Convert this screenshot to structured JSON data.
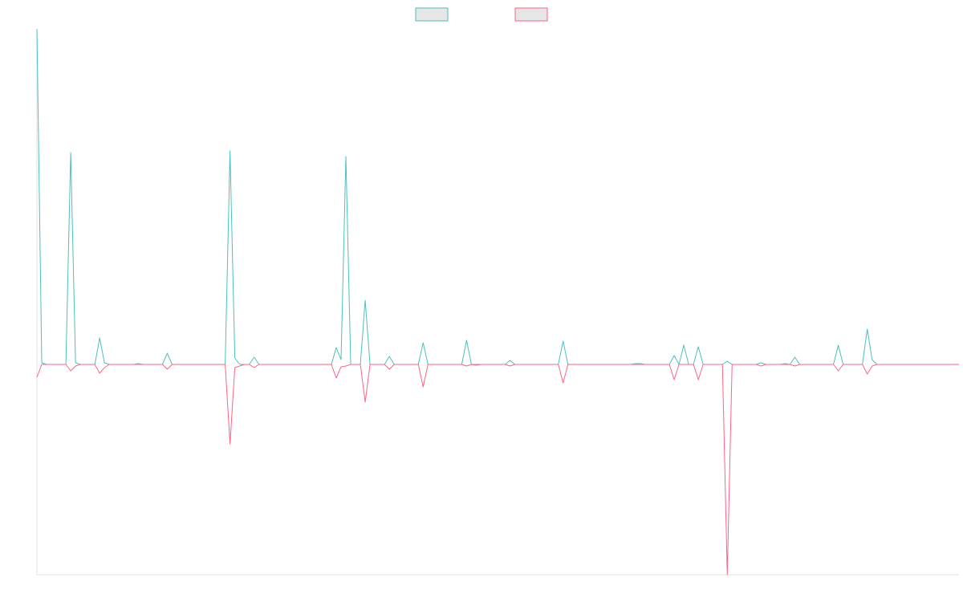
{
  "chart_data": {
    "type": "line",
    "ylim": [
      -262,
      418
    ],
    "legend": "top",
    "series": [
      {
        "color": "#4bc0c0",
        "values": [
          418,
          2,
          0,
          0,
          0,
          0,
          0,
          264,
          2,
          0,
          0,
          0,
          0,
          33,
          2,
          0,
          0,
          0,
          0,
          0,
          0,
          1,
          0,
          0,
          0,
          0,
          0,
          14,
          0,
          0,
          0,
          0,
          0,
          0,
          0,
          0,
          0,
          0,
          0,
          0,
          266,
          8,
          0,
          0,
          0,
          9,
          0,
          0,
          0,
          0,
          0,
          0,
          0,
          0,
          0,
          0,
          0,
          0,
          0,
          0,
          0,
          0,
          21,
          6,
          259,
          0,
          0,
          0,
          80,
          0,
          0,
          0,
          0,
          10,
          0,
          0,
          0,
          0,
          0,
          0,
          27,
          0,
          0,
          0,
          0,
          0,
          0,
          0,
          0,
          30,
          0,
          0,
          0,
          0,
          0,
          0,
          0,
          0,
          5,
          0,
          0,
          0,
          0,
          0,
          0,
          0,
          0,
          0,
          0,
          29,
          0,
          0,
          0,
          0,
          0,
          0,
          0,
          0,
          0,
          0,
          0,
          0,
          0,
          0,
          1,
          1,
          0,
          0,
          0,
          0,
          0,
          0,
          11,
          0,
          24,
          0,
          0,
          22,
          0,
          0,
          0,
          0,
          0,
          4,
          0,
          0,
          0,
          0,
          0,
          0,
          2,
          0,
          0,
          0,
          0,
          1,
          0,
          9,
          0,
          0,
          0,
          0,
          0,
          0,
          0,
          0,
          24,
          0,
          0,
          0,
          0,
          0,
          44,
          6,
          0,
          0,
          0,
          0,
          0,
          0,
          0,
          0,
          0,
          0,
          0,
          0,
          0,
          0,
          0,
          0,
          0,
          0
        ]
      },
      {
        "color": "#ff6384",
        "values": [
          -16,
          0,
          0,
          0,
          0,
          0,
          0,
          -8,
          -2,
          0,
          0,
          0,
          0,
          -11,
          -4,
          0,
          0,
          0,
          0,
          0,
          0,
          0,
          0,
          0,
          0,
          0,
          0,
          -6,
          0,
          0,
          0,
          0,
          0,
          0,
          0,
          0,
          0,
          0,
          0,
          0,
          -99,
          -4,
          -2,
          0,
          0,
          -4,
          0,
          0,
          0,
          0,
          0,
          0,
          0,
          0,
          0,
          0,
          0,
          0,
          0,
          0,
          0,
          0,
          -17,
          -3,
          -2,
          0,
          0,
          0,
          -47,
          0,
          0,
          0,
          0,
          -6,
          0,
          0,
          0,
          0,
          0,
          0,
          -28,
          0,
          0,
          0,
          0,
          0,
          0,
          0,
          0,
          -2,
          0,
          -1,
          0,
          0,
          0,
          0,
          0,
          0,
          -2,
          0,
          0,
          0,
          0,
          0,
          0,
          0,
          0,
          0,
          0,
          -23,
          0,
          0,
          0,
          0,
          0,
          0,
          0,
          0,
          0,
          0,
          0,
          0,
          0,
          0,
          0,
          0,
          0,
          0,
          0,
          0,
          0,
          0,
          -19,
          0,
          0,
          0,
          0,
          -19,
          0,
          0,
          0,
          0,
          0,
          -262,
          0,
          0,
          0,
          0,
          0,
          0,
          -2,
          0,
          0,
          0,
          0,
          0,
          0,
          -2,
          0,
          0,
          0,
          0,
          0,
          0,
          0,
          0,
          -8,
          0,
          0,
          0,
          0,
          0,
          -12,
          -2,
          0,
          0,
          0,
          0,
          0,
          0,
          0,
          0,
          0,
          0,
          0,
          0,
          0,
          0,
          0,
          0,
          0,
          0
        ]
      }
    ]
  }
}
